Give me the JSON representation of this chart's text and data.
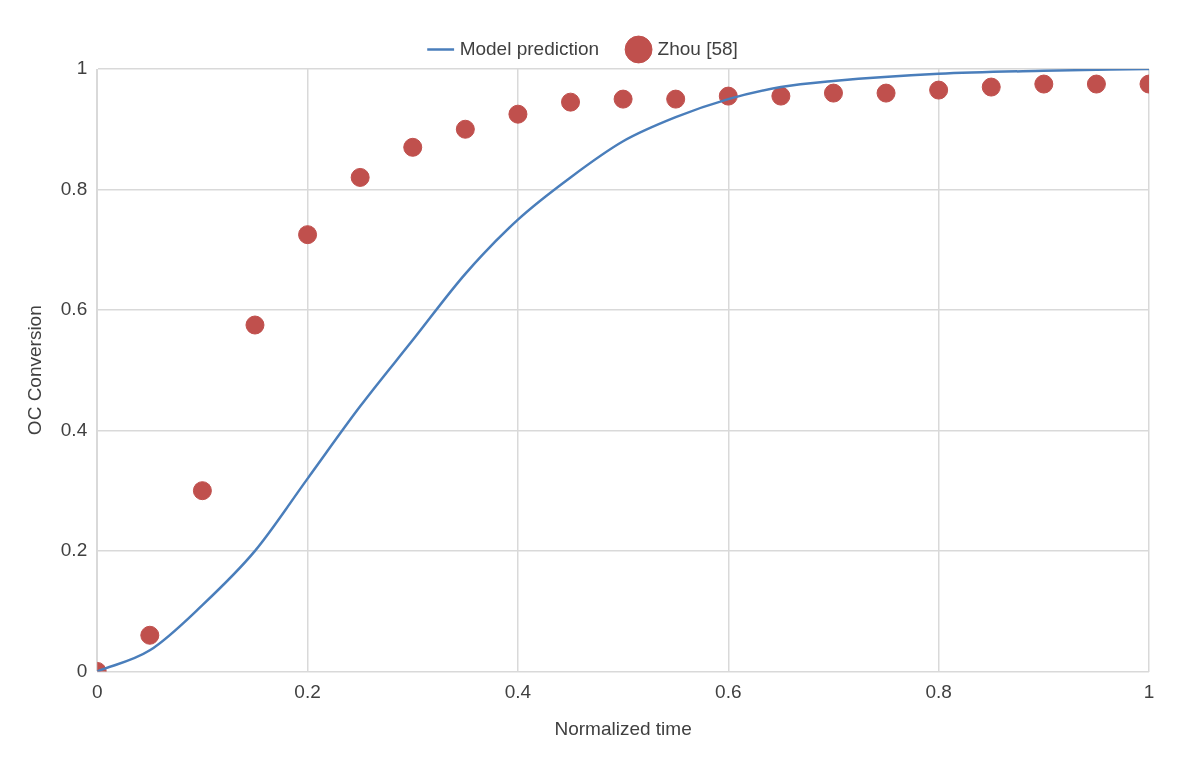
{
  "chart_data": {
    "type": "line",
    "xlabel": "Normalized time",
    "ylabel": "OC Conversion",
    "xlim": [
      0,
      1
    ],
    "xticks": [
      0,
      0.2,
      0.4,
      0.6,
      0.8,
      1
    ],
    "ylim": [
      0,
      1
    ],
    "yticks": [
      0,
      0.2,
      0.4,
      0.6,
      0.8,
      1
    ],
    "grid": true,
    "legend": "top",
    "series": [
      {
        "name": "Model prediction",
        "color": "#4a7ebb",
        "marker": "none",
        "line_style": "solid",
        "x": [
          0,
          0.05,
          0.1,
          0.15,
          0.2,
          0.25,
          0.3,
          0.35,
          0.4,
          0.45,
          0.5,
          0.55,
          0.6,
          0.65,
          0.7,
          0.8,
          0.9,
          1
        ],
        "values": [
          0,
          0.035,
          0.11,
          0.2,
          0.32,
          0.44,
          0.55,
          0.66,
          0.75,
          0.82,
          0.88,
          0.92,
          0.95,
          0.97,
          0.98,
          0.992,
          0.997,
          1
        ]
      },
      {
        "name": "Zhou [58]",
        "type": "scatter",
        "color": "#c0504d",
        "marker": "circle",
        "x": [
          0,
          0.05,
          0.1,
          0.15,
          0.2,
          0.25,
          0.3,
          0.35,
          0.4,
          0.45,
          0.5,
          0.55,
          0.6,
          0.65,
          0.7,
          0.75,
          0.8,
          0.85,
          0.9,
          0.95,
          1
        ],
        "values": [
          0,
          0.06,
          0.3,
          0.575,
          0.725,
          0.82,
          0.87,
          0.9,
          0.925,
          0.945,
          0.95,
          0.95,
          0.955,
          0.955,
          0.96,
          0.96,
          0.965,
          0.97,
          0.975,
          0.975,
          0.975
        ]
      }
    ]
  }
}
